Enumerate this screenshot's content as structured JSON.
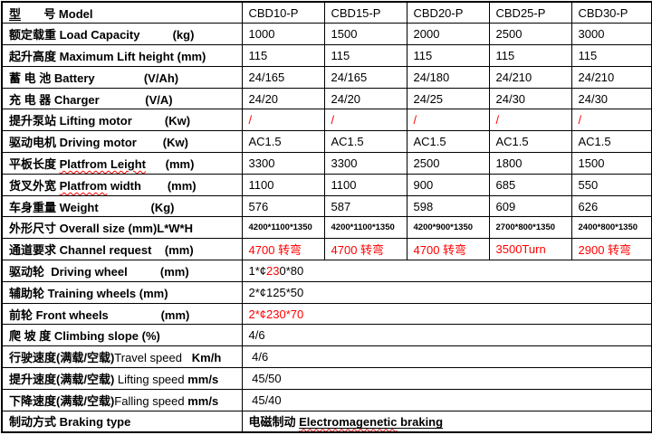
{
  "document": {
    "type": "specification-table",
    "models": [
      "CBD10-P",
      "CBD15-P",
      "CBD20-P",
      "CBD25-P",
      "CBD30-P"
    ]
  },
  "colors": {
    "text": "#000000",
    "accent_red": "#ff0000",
    "border": "#000000",
    "background": "#ffffff"
  },
  "table": {
    "label_column_width": 265,
    "value_column_width": 91,
    "rows": [
      {
        "name": "model",
        "label": [
          {
            "t": "型",
            "c": "u"
          },
          {
            "t": "       "
          },
          {
            "t": "号 Model"
          }
        ],
        "values": [
          [
            {
              "t": "CBD10-P"
            }
          ],
          [
            {
              "t": "CBD15-P"
            }
          ],
          [
            {
              "t": "CBD20-P"
            }
          ],
          [
            {
              "t": "CBD25-P"
            }
          ],
          [
            {
              "t": "CBD30-P"
            }
          ]
        ]
      },
      {
        "name": "load-capacity",
        "label": [
          {
            "t": "额定载重 Load Capacity"
          },
          {
            "t": "          "
          },
          {
            "t": "(kg)"
          }
        ],
        "values": [
          [
            {
              "t": "1000"
            }
          ],
          [
            {
              "t": "1500"
            }
          ],
          [
            {
              "t": "2000"
            }
          ],
          [
            {
              "t": "2500"
            }
          ],
          [
            {
              "t": "3000"
            }
          ]
        ]
      },
      {
        "name": "max-lift-height",
        "label": [
          {
            "t": "起升高度 Maximum Lift height (mm)"
          }
        ],
        "values": [
          [
            {
              "t": "115"
            }
          ],
          [
            {
              "t": "115"
            }
          ],
          [
            {
              "t": "115"
            }
          ],
          [
            {
              "t": "115"
            }
          ],
          [
            {
              "t": "115"
            }
          ]
        ]
      },
      {
        "name": "battery",
        "label": [
          {
            "t": "蓄 电 池 Battery"
          },
          {
            "t": "               "
          },
          {
            "t": "(V/Ah)"
          }
        ],
        "values": [
          [
            {
              "t": "24/165"
            }
          ],
          [
            {
              "t": "24/165"
            }
          ],
          [
            {
              "t": "24/180"
            }
          ],
          [
            {
              "t": "24/210"
            }
          ],
          [
            {
              "t": "24/210"
            }
          ]
        ]
      },
      {
        "name": "charger",
        "label": [
          {
            "t": "充 电 器 Charger"
          },
          {
            "t": "              "
          },
          {
            "t": "(V/A)"
          }
        ],
        "values": [
          [
            {
              "t": "24/20"
            }
          ],
          [
            {
              "t": "24/20"
            }
          ],
          [
            {
              "t": "24/25"
            }
          ],
          [
            {
              "t": "24/30"
            }
          ],
          [
            {
              "t": "24/30"
            }
          ]
        ]
      },
      {
        "name": "lifting-motor",
        "label": [
          {
            "t": "提升泵站 Lifting motor"
          },
          {
            "t": "          "
          },
          {
            "t": "(Kw)"
          }
        ],
        "values": [
          [
            {
              "t": "/",
              "c": "r"
            }
          ],
          [
            {
              "t": "/",
              "c": "r"
            }
          ],
          [
            {
              "t": "/",
              "c": "r"
            }
          ],
          [
            {
              "t": "/",
              "c": "r"
            }
          ],
          [
            {
              "t": "/",
              "c": "r"
            }
          ]
        ]
      },
      {
        "name": "driving-motor",
        "label": [
          {
            "t": "驱动电机 Driving motor"
          },
          {
            "t": "        "
          },
          {
            "t": "(Kw)"
          }
        ],
        "values": [
          [
            {
              "t": "AC1.5"
            }
          ],
          [
            {
              "t": "AC1.5"
            }
          ],
          [
            {
              "t": "AC1.5"
            }
          ],
          [
            {
              "t": "AC1.5"
            }
          ],
          [
            {
              "t": "AC1.5"
            }
          ]
        ]
      },
      {
        "name": "platform-length",
        "label": [
          {
            "t": "平板长度 "
          },
          {
            "t": "Platfrom Leight",
            "c": "w"
          },
          {
            "t": "      "
          },
          {
            "t": "(mm)"
          }
        ],
        "values": [
          [
            {
              "t": "3300"
            }
          ],
          [
            {
              "t": "3300"
            }
          ],
          [
            {
              "t": "2500"
            }
          ],
          [
            {
              "t": "1800"
            }
          ],
          [
            {
              "t": "1500"
            }
          ]
        ]
      },
      {
        "name": "platform-width",
        "label": [
          {
            "t": "货叉外宽 "
          },
          {
            "t": "Platfrom",
            "c": "w"
          },
          {
            "t": " width"
          },
          {
            "t": "        "
          },
          {
            "t": "(mm)"
          }
        ],
        "values": [
          [
            {
              "t": "1100"
            }
          ],
          [
            {
              "t": "1100"
            }
          ],
          [
            {
              "t": "900"
            }
          ],
          [
            {
              "t": "685"
            }
          ],
          [
            {
              "t": "550"
            }
          ]
        ]
      },
      {
        "name": "weight",
        "label": [
          {
            "t": "车身重量 Weight"
          },
          {
            "t": "                "
          },
          {
            "t": "(Kg)"
          }
        ],
        "values": [
          [
            {
              "t": "576"
            }
          ],
          [
            {
              "t": "587"
            }
          ],
          [
            {
              "t": "598"
            }
          ],
          [
            {
              "t": "609"
            }
          ],
          [
            {
              "t": "626"
            }
          ]
        ]
      },
      {
        "name": "overall-size",
        "label": [
          {
            "t": "外形尺寸 Overall size (mm)L*W*H"
          }
        ],
        "vcls": "sm",
        "values": [
          [
            {
              "t": "4200*1100*1350"
            }
          ],
          [
            {
              "t": "4200*1100*1350"
            }
          ],
          [
            {
              "t": "4200*900*1350"
            }
          ],
          [
            {
              "t": "2700*800*1350"
            }
          ],
          [
            {
              "t": "2400*800*1350"
            }
          ]
        ]
      },
      {
        "name": "channel-request",
        "label": [
          {
            "t": "通道要求 Channel request"
          },
          {
            "t": "    "
          },
          {
            "t": "(mm)"
          }
        ],
        "values": [
          [
            {
              "t": "4700 转弯",
              "c": "r"
            }
          ],
          [
            {
              "t": "4700 转弯",
              "c": "r"
            }
          ],
          [
            {
              "t": "4700 转弯",
              "c": "r"
            }
          ],
          [
            {
              "t": "3500Turn",
              "c": "r"
            }
          ],
          [
            {
              "t": "2900 转弯",
              "c": "r"
            }
          ]
        ]
      },
      {
        "name": "driving-wheel",
        "label": [
          {
            "t": "驱动轮  Driving wheel"
          },
          {
            "t": "          "
          },
          {
            "t": "(mm)"
          }
        ],
        "merged": true,
        "values": [
          [
            {
              "t": "1*¢"
            },
            {
              "t": "23",
              "c": "r"
            },
            {
              "t": "0*80"
            }
          ]
        ]
      },
      {
        "name": "training-wheels",
        "label": [
          {
            "t": "辅助轮 Training wheels (mm)"
          }
        ],
        "merged": true,
        "values": [
          [
            {
              "t": "2*¢125*50"
            }
          ]
        ]
      },
      {
        "name": "front-wheels",
        "label": [
          {
            "t": "前轮 Front wheels"
          },
          {
            "t": "                "
          },
          {
            "t": "(mm)"
          }
        ],
        "merged": true,
        "values": [
          [
            {
              "t": "2*¢230*70",
              "c": "r"
            }
          ]
        ]
      },
      {
        "name": "climbing-slope",
        "label": [
          {
            "t": "爬 坡 度 Climbing slope (%)"
          }
        ],
        "merged": true,
        "values": [
          [
            {
              "t": "4/6"
            }
          ]
        ]
      },
      {
        "name": "travel-speed",
        "label": [
          {
            "t": "行驶速度(满载/空载)"
          },
          {
            "t": "Travel speed",
            "c": "n"
          },
          {
            "t": "   "
          },
          {
            "t": "Km/h"
          }
        ],
        "merged": true,
        "values": [
          [
            {
              "t": " 4/6"
            }
          ]
        ]
      },
      {
        "name": "lifting-speed",
        "label": [
          {
            "t": "提升速度(满载/空载) "
          },
          {
            "t": "Lifting speed ",
            "c": "n"
          },
          {
            "t": "mm/s"
          }
        ],
        "merged": true,
        "values": [
          [
            {
              "t": " 45/50"
            }
          ]
        ]
      },
      {
        "name": "falling-speed",
        "label": [
          {
            "t": "下降速度(满载/空载)"
          },
          {
            "t": "Falling speed ",
            "c": "n"
          },
          {
            "t": "mm/s"
          }
        ],
        "merged": true,
        "values": [
          [
            {
              "t": " 45/40"
            }
          ]
        ]
      },
      {
        "name": "braking-type",
        "label": [
          {
            "t": "制动方式 Braking type"
          }
        ],
        "merged": true,
        "vcls": "b",
        "values": [
          [
            {
              "t": "电磁制动 "
            },
            {
              "t": "Electromagenetic",
              "c": "u w"
            },
            {
              "t": " braking",
              "c": "u"
            }
          ]
        ]
      }
    ]
  }
}
